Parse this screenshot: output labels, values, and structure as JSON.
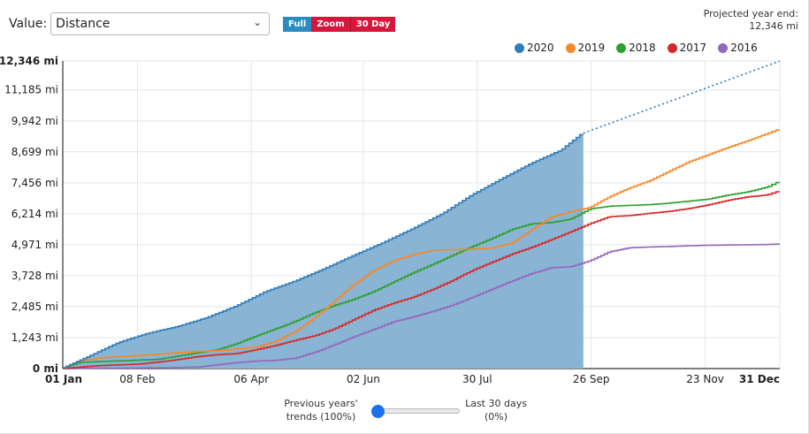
{
  "controls": {
    "value_label": "Value:",
    "value_selected": "Distance",
    "range_buttons": [
      "Full",
      "Zoom",
      "30 Day"
    ]
  },
  "projection": {
    "label": "Projected year end:",
    "value": "12,346 mi"
  },
  "colors": {
    "2020": "#2f7cb8",
    "2019": "#f5882a",
    "2018": "#2ca02c",
    "2017": "#d62728",
    "2016": "#9467bd",
    "area_fill": "#8ab4d4"
  },
  "slider": {
    "left_label_1": "Previous years'",
    "left_label_2": "trends (100%)",
    "right_label_1": "Last 30 days",
    "right_label_2": "(0%)",
    "value_percent": 0
  },
  "chart_data": {
    "type": "area",
    "x_unit": "day_of_year",
    "xlim": [
      1,
      366
    ],
    "ylim": [
      0,
      12346
    ],
    "grid": true,
    "legend_position": "top-right",
    "y_ticks": [
      {
        "value": 0,
        "label": "0 mi"
      },
      {
        "value": 1243,
        "label": "1,243 mi"
      },
      {
        "value": 2485,
        "label": "2,485 mi"
      },
      {
        "value": 3728,
        "label": "3,728 mi"
      },
      {
        "value": 4971,
        "label": "4,971 mi"
      },
      {
        "value": 6214,
        "label": "6,214 mi"
      },
      {
        "value": 7456,
        "label": "7,456 mi"
      },
      {
        "value": 8699,
        "label": "8,699 mi"
      },
      {
        "value": 9942,
        "label": "9,942 mi"
      },
      {
        "value": 11185,
        "label": "11,185 mi"
      },
      {
        "value": 12346,
        "label": "12,346 mi"
      }
    ],
    "x_ticks": [
      {
        "value": 1,
        "label": "01 Jan"
      },
      {
        "value": 39,
        "label": "08 Feb"
      },
      {
        "value": 97,
        "label": "06 Apr"
      },
      {
        "value": 154,
        "label": "02 Jun"
      },
      {
        "value": 212,
        "label": "30 Jul"
      },
      {
        "value": 270,
        "label": "26 Sep"
      },
      {
        "value": 328,
        "label": "23 Nov"
      },
      {
        "value": 366,
        "label": "31 Dec"
      }
    ],
    "series": [
      {
        "name": "2020",
        "x": [
          1,
          15,
          30,
          45,
          60,
          75,
          90,
          105,
          120,
          135,
          150,
          165,
          180,
          195,
          210,
          225,
          240,
          255,
          266
        ],
        "y": [
          0,
          500,
          1050,
          1420,
          1690,
          2050,
          2520,
          3100,
          3520,
          4020,
          4560,
          5070,
          5630,
          6230,
          6980,
          7620,
          8240,
          8760,
          9450
        ]
      },
      {
        "name": "2020 projection",
        "x": [
          266,
          366
        ],
        "y": [
          9450,
          12346
        ]
      },
      {
        "name": "2019",
        "x": [
          1,
          10,
          20,
          30,
          40,
          50,
          60,
          70,
          80,
          90,
          100,
          110,
          120,
          130,
          140,
          150,
          160,
          170,
          180,
          190,
          200,
          210,
          220,
          230,
          240,
          250,
          260,
          270,
          280,
          290,
          300,
          310,
          320,
          330,
          340,
          350,
          360,
          366
        ],
        "y": [
          0,
          310,
          420,
          480,
          520,
          580,
          640,
          680,
          720,
          790,
          860,
          1100,
          1500,
          2050,
          2720,
          3400,
          3950,
          4330,
          4580,
          4750,
          4780,
          4790,
          4840,
          5030,
          5560,
          6080,
          6300,
          6470,
          6900,
          7250,
          7530,
          7910,
          8290,
          8580,
          8870,
          9140,
          9430,
          9600
        ]
      },
      {
        "name": "2018",
        "x": [
          1,
          10,
          20,
          30,
          40,
          50,
          60,
          70,
          80,
          90,
          100,
          110,
          120,
          130,
          140,
          150,
          160,
          170,
          180,
          190,
          200,
          210,
          220,
          230,
          240,
          250,
          260,
          270,
          280,
          290,
          300,
          310,
          320,
          330,
          340,
          350,
          360,
          366
        ],
        "y": [
          0,
          250,
          280,
          310,
          340,
          370,
          500,
          630,
          750,
          1000,
          1310,
          1600,
          1900,
          2250,
          2540,
          2790,
          3100,
          3480,
          3850,
          4190,
          4550,
          4900,
          5220,
          5580,
          5810,
          5860,
          6000,
          6410,
          6520,
          6550,
          6580,
          6640,
          6720,
          6800,
          6960,
          7090,
          7280,
          7500
        ]
      },
      {
        "name": "2017",
        "x": [
          1,
          10,
          20,
          30,
          40,
          50,
          60,
          70,
          80,
          90,
          100,
          110,
          120,
          130,
          140,
          150,
          160,
          170,
          180,
          190,
          200,
          210,
          220,
          230,
          240,
          250,
          260,
          270,
          280,
          290,
          300,
          310,
          320,
          330,
          340,
          350,
          360,
          366
        ],
        "y": [
          0,
          60,
          120,
          150,
          180,
          260,
          360,
          480,
          560,
          600,
          760,
          930,
          1140,
          1320,
          1600,
          1980,
          2350,
          2630,
          2870,
          3180,
          3540,
          3940,
          4270,
          4590,
          4860,
          5170,
          5490,
          5820,
          6100,
          6140,
          6230,
          6310,
          6420,
          6570,
          6750,
          6890,
          6970,
          7120
        ]
      },
      {
        "name": "2016",
        "x": [
          1,
          10,
          20,
          30,
          40,
          50,
          60,
          70,
          80,
          90,
          100,
          110,
          120,
          130,
          140,
          150,
          160,
          170,
          180,
          190,
          200,
          210,
          220,
          230,
          240,
          250,
          260,
          270,
          280,
          290,
          300,
          310,
          320,
          330,
          340,
          350,
          360,
          366
        ],
        "y": [
          0,
          10,
          15,
          20,
          25,
          30,
          40,
          60,
          150,
          240,
          300,
          330,
          420,
          660,
          960,
          1290,
          1580,
          1880,
          2080,
          2300,
          2550,
          2860,
          3190,
          3510,
          3810,
          4050,
          4090,
          4330,
          4690,
          4850,
          4880,
          4900,
          4930,
          4950,
          4960,
          4970,
          4980,
          5000
        ]
      }
    ]
  }
}
